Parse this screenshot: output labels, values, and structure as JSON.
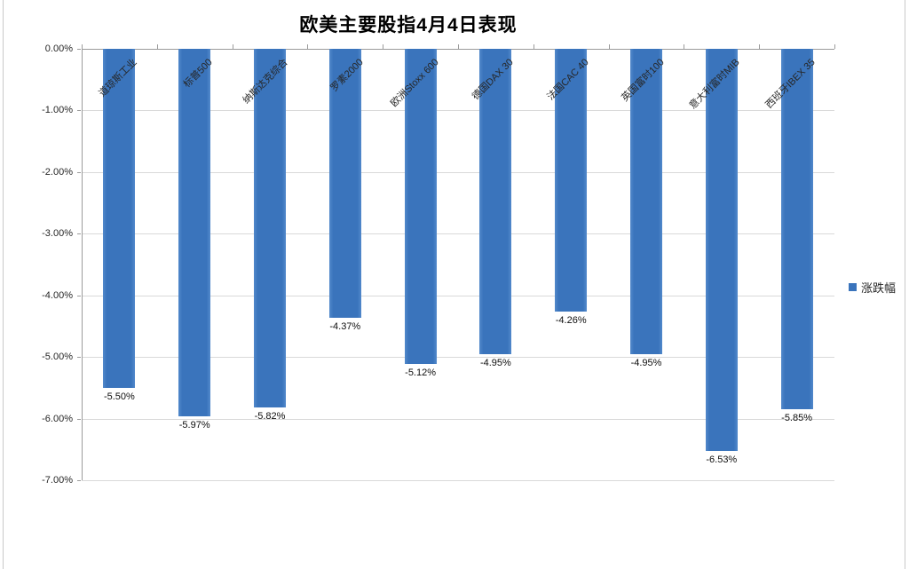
{
  "title": "欧美主要股指4月4日表现",
  "legend": {
    "label": "涨跌幅",
    "marker_color": "#3a74bc"
  },
  "colors": {
    "bar": "#3a74bc",
    "gridline": "#d9d9d9",
    "axis": "#9b9b9b",
    "text": "#262626",
    "background": "#ffffff"
  },
  "chart_data": {
    "type": "bar",
    "title": "欧美主要股指4月4日表现",
    "series_name": "涨跌幅",
    "categories": [
      "道琼斯工业",
      "标普500",
      "纳斯达克综合",
      "罗素2000",
      "欧洲Stoxx 600",
      "德国DAX 30",
      "法国CAC 40",
      "英国富时100",
      "意大利富时MIB",
      "西班牙IBEX 35"
    ],
    "values": [
      -5.5,
      -5.97,
      -5.82,
      -4.37,
      -5.12,
      -4.95,
      -4.26,
      -4.95,
      -6.53,
      -5.85
    ],
    "data_labels": [
      "-5.50%",
      "-5.97%",
      "-5.82%",
      "-4.37%",
      "-5.12%",
      "-4.95%",
      "-4.26%",
      "-4.95%",
      "-6.53%",
      "-5.85%"
    ],
    "xlabel": "",
    "ylabel": "",
    "ylim": [
      -7,
      0
    ],
    "ytick_labels": [
      "0.00%",
      "-1.00%",
      "-2.00%",
      "-3.00%",
      "-4.00%",
      "-5.00%",
      "-6.00%",
      "-7.00%"
    ],
    "grid": true,
    "legend_position": "right",
    "data_label_position": "below-bar",
    "category_label_rotation_deg": 45
  }
}
